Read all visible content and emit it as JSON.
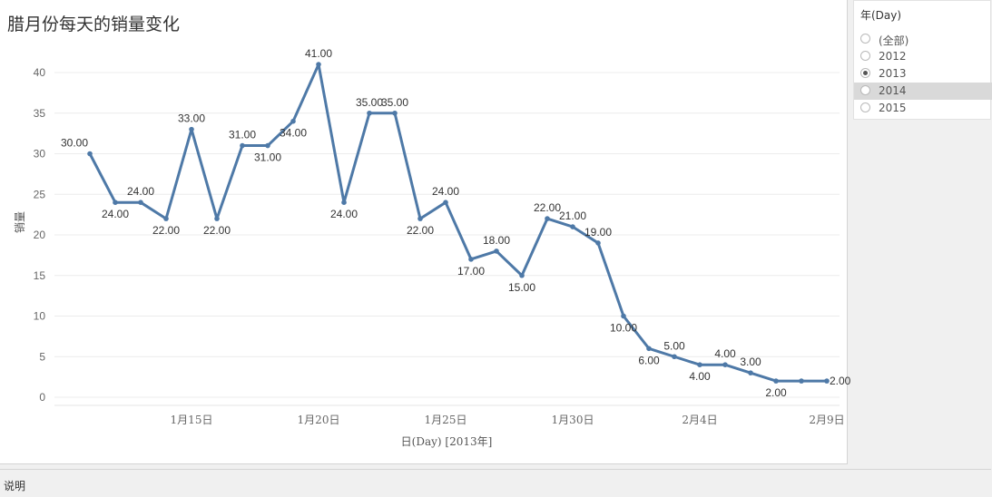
{
  "title": "腊月份每天的销量变化",
  "chart_data": {
    "type": "line",
    "x": [
      "2013-01-11",
      "2013-01-12",
      "2013-01-13",
      "2013-01-14",
      "2013-01-15",
      "2013-01-16",
      "2013-01-17",
      "2013-01-18",
      "2013-01-19",
      "2013-01-20",
      "2013-01-21",
      "2013-01-22",
      "2013-01-23",
      "2013-01-24",
      "2013-01-25",
      "2013-01-26",
      "2013-01-27",
      "2013-01-28",
      "2013-01-29",
      "2013-01-30",
      "2013-01-31",
      "2013-02-01",
      "2013-02-02",
      "2013-02-03",
      "2013-02-04",
      "2013-02-05",
      "2013-02-06",
      "2013-02-07",
      "2013-02-08",
      "2013-02-09"
    ],
    "values": [
      30,
      24,
      24,
      22,
      33,
      22,
      31,
      31,
      34,
      41,
      24,
      35,
      35,
      22,
      24,
      17,
      18,
      15,
      22,
      21,
      19,
      10,
      6,
      5,
      4,
      4,
      3,
      2,
      2,
      2
    ],
    "data_labels": [
      "30.00",
      "24.00",
      "24.00",
      "22.00",
      "33.00",
      "22.00",
      "31.00",
      "31.00",
      "34.00",
      "41.00",
      "24.00",
      "35.00",
      "35.00",
      "22.00",
      "24.00",
      "17.00",
      "18.00",
      "15.00",
      "22.00",
      "21.00",
      "19.00",
      "10.00",
      "6.00",
      "5.00",
      "4.00",
      "4.00",
      "3.00",
      "2.00",
      "",
      "2.00"
    ],
    "xlabel": "日(Day) [2013年]",
    "ylabel": "销量",
    "ylim": [
      0,
      42
    ],
    "y_ticks": [
      0,
      5,
      10,
      15,
      20,
      25,
      30,
      35,
      40
    ],
    "x_tick_labels": [
      {
        "date": "2013-01-15",
        "label": "1月15日"
      },
      {
        "date": "2013-01-20",
        "label": "1月20日"
      },
      {
        "date": "2013-01-25",
        "label": "1月25日"
      },
      {
        "date": "2013-01-30",
        "label": "1月30日"
      },
      {
        "date": "2013-02-04",
        "label": "2月4日"
      },
      {
        "date": "2013-02-09",
        "label": "2月9日"
      }
    ],
    "grid": true,
    "line_color": "#4e79a7"
  },
  "filter": {
    "title": "年(Day)",
    "options": [
      {
        "label": "(全部)",
        "checked": false,
        "highlighted": false
      },
      {
        "label": "2012",
        "checked": false,
        "highlighted": false
      },
      {
        "label": "2013",
        "checked": true,
        "highlighted": false
      },
      {
        "label": "2014",
        "checked": false,
        "highlighted": true
      },
      {
        "label": "2015",
        "checked": false,
        "highlighted": false
      }
    ]
  },
  "footer": {
    "label": "说明"
  }
}
